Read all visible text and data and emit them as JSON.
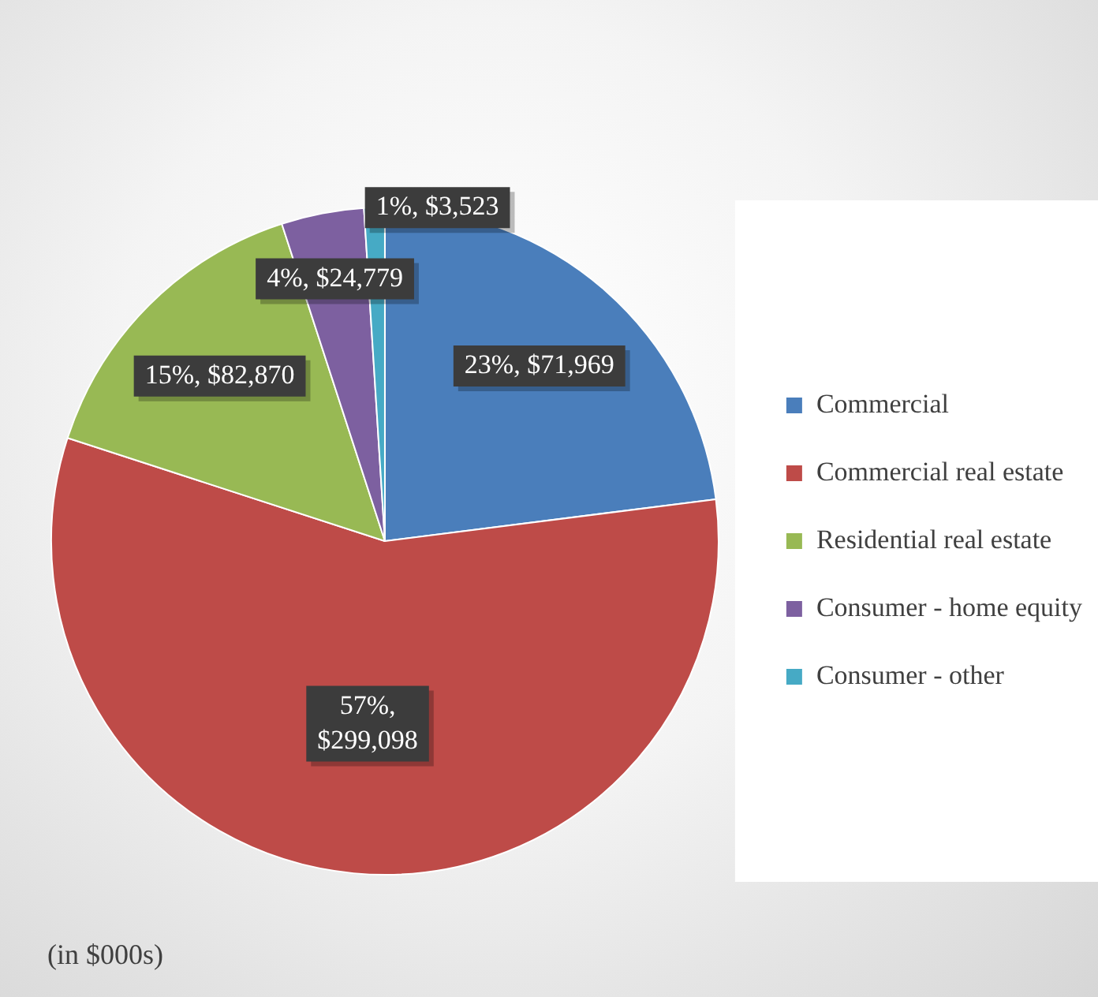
{
  "chart_data": {
    "type": "pie",
    "categories": [
      "Commercial",
      "Commercial real estate",
      "Residential real estate",
      "Consumer - home equity",
      "Consumer - other"
    ],
    "values": [
      23,
      57,
      15,
      4,
      1
    ],
    "colors": [
      "#4a7ebb",
      "#be4b48",
      "#98b954",
      "#7d60a0",
      "#46aac5"
    ],
    "value_labels": [
      "23%, $71,969",
      "57%, $299,098",
      "15%, $82,870",
      "4%, $24,779",
      "1%, $3,523"
    ],
    "legend": "right",
    "annotations": [
      "(in $000s)"
    ]
  }
}
